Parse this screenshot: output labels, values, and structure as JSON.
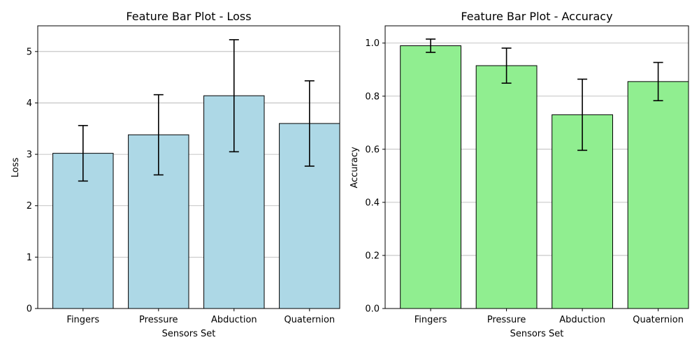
{
  "chart_data": [
    {
      "type": "bar",
      "title": "Feature Bar Plot - Loss",
      "xlabel": "Sensors Set",
      "ylabel": "Loss",
      "categories": [
        "Fingers",
        "Pressure",
        "Abduction",
        "Quaternion"
      ],
      "values": [
        3.02,
        3.38,
        4.14,
        3.6
      ],
      "errors": [
        0.54,
        0.78,
        1.09,
        0.83
      ],
      "ylim": [
        0,
        5.5
      ],
      "yticks": [
        0,
        1,
        2,
        3,
        4,
        5
      ],
      "ytick_labels": [
        "0",
        "1",
        "2",
        "3",
        "4",
        "5"
      ],
      "grid": "y",
      "bar_color": "#add8e6"
    },
    {
      "type": "bar",
      "title": "Feature Bar Plot - Accuracy",
      "xlabel": "Sensors Set",
      "ylabel": "Accuracy",
      "categories": [
        "Fingers",
        "Pressure",
        "Abduction",
        "Quaternion"
      ],
      "values": [
        0.99,
        0.915,
        0.73,
        0.855
      ],
      "errors": [
        0.025,
        0.066,
        0.134,
        0.072
      ],
      "ylim": [
        0,
        1.065
      ],
      "yticks": [
        0,
        0.2,
        0.4,
        0.6,
        0.8,
        1.0
      ],
      "ytick_labels": [
        "0.0",
        "0.2",
        "0.4",
        "0.6",
        "0.8",
        "1.0"
      ],
      "grid": "y",
      "bar_color": "#90ee90"
    }
  ]
}
